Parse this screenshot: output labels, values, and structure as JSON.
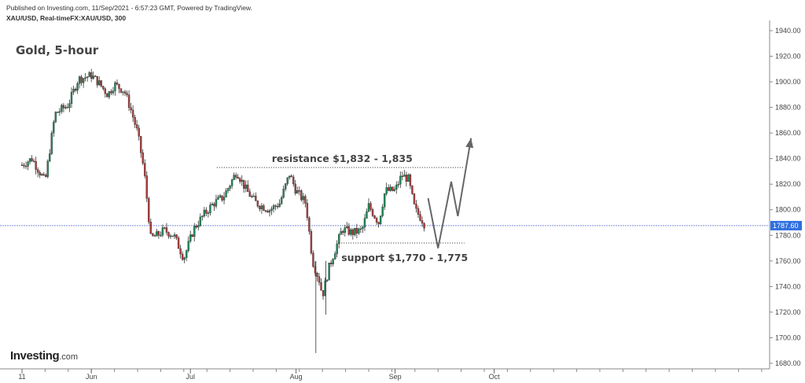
{
  "header": {
    "published": "Published on Investing.com, 11/Sep/2021 - 6:57:23 GMT, Powered by TradingView.",
    "symbol": "XAU/USD, Real-timeFX:XAU/USD, 300"
  },
  "logo": {
    "brand": "Investing",
    "suffix": ".com"
  },
  "chart_data": {
    "type": "candlestick",
    "title": "Gold, 5-hour",
    "y_axis": {
      "position": "right",
      "range": [
        1675,
        1945
      ],
      "ticks": [
        1680,
        1700,
        1720,
        1740,
        1760,
        1780,
        1800,
        1820,
        1840,
        1860,
        1880,
        1900,
        1920,
        1940
      ],
      "tick_labels": [
        "1680.00",
        "1700.00",
        "1720.00",
        "1740.00",
        "1760.00",
        "1780.00",
        "1800.00",
        "1820.00",
        "1840.00",
        "1860.00",
        "1880.00",
        "1900.00",
        "1920.00",
        "1940.00"
      ]
    },
    "x_axis": {
      "ticks": [
        "2021-05-11",
        "2021-06-01",
        "2021-07-01",
        "2021-08-02",
        "2021-09-01",
        "2021-10-01"
      ],
      "tick_labels": [
        "11",
        "Jun",
        "Jul",
        "Aug",
        "Sep",
        "Oct"
      ]
    },
    "grid": false,
    "last_price": 1787.6,
    "last_price_label": "1787.60",
    "annotations": {
      "resistance": {
        "label": "resistance $1,832 - 1,835",
        "value": 1833,
        "from": "2021-07-09",
        "to": "2021-09-22"
      },
      "support": {
        "label": "support $1,770 - 1,775",
        "value": 1774,
        "from": "2021-08-15",
        "to": "2021-09-22"
      }
    },
    "projection": [
      {
        "x": "2021-09-11",
        "y": 1809
      },
      {
        "x": "2021-09-14",
        "y": 1770
      },
      {
        "x": "2021-09-18",
        "y": 1822
      },
      {
        "x": "2021-09-20",
        "y": 1795
      },
      {
        "x": "2021-09-24",
        "y": 1856
      }
    ],
    "price_path": [
      {
        "x": "2021-05-11",
        "y": 1835
      },
      {
        "x": "2021-05-14",
        "y": 1840
      },
      {
        "x": "2021-05-18",
        "y": 1822
      },
      {
        "x": "2021-05-21",
        "y": 1875
      },
      {
        "x": "2021-05-25",
        "y": 1882
      },
      {
        "x": "2021-05-28",
        "y": 1902
      },
      {
        "x": "2021-06-01",
        "y": 1905
      },
      {
        "x": "2021-06-03",
        "y": 1900
      },
      {
        "x": "2021-06-06",
        "y": 1890
      },
      {
        "x": "2021-06-08",
        "y": 1898
      },
      {
        "x": "2021-06-11",
        "y": 1893
      },
      {
        "x": "2021-06-13",
        "y": 1878
      },
      {
        "x": "2021-06-15",
        "y": 1860
      },
      {
        "x": "2021-06-17",
        "y": 1830
      },
      {
        "x": "2021-06-19",
        "y": 1778
      },
      {
        "x": "2021-06-21",
        "y": 1780
      },
      {
        "x": "2021-06-23",
        "y": 1784
      },
      {
        "x": "2021-06-26",
        "y": 1780
      },
      {
        "x": "2021-06-29",
        "y": 1762
      },
      {
        "x": "2021-07-02",
        "y": 1785
      },
      {
        "x": "2021-07-05",
        "y": 1796
      },
      {
        "x": "2021-07-08",
        "y": 1805
      },
      {
        "x": "2021-07-11",
        "y": 1810
      },
      {
        "x": "2021-07-15",
        "y": 1830
      },
      {
        "x": "2021-07-18",
        "y": 1815
      },
      {
        "x": "2021-07-21",
        "y": 1805
      },
      {
        "x": "2021-07-25",
        "y": 1800
      },
      {
        "x": "2021-07-28",
        "y": 1805
      },
      {
        "x": "2021-07-31",
        "y": 1828
      },
      {
        "x": "2021-08-02",
        "y": 1815
      },
      {
        "x": "2021-08-05",
        "y": 1805
      },
      {
        "x": "2021-08-07",
        "y": 1760
      },
      {
        "x": "2021-08-09",
        "y": 1745
      },
      {
        "x": "2021-08-10",
        "y": 1733
      },
      {
        "x": "2021-08-12",
        "y": 1755
      },
      {
        "x": "2021-08-14",
        "y": 1770
      },
      {
        "x": "2021-08-16",
        "y": 1785
      },
      {
        "x": "2021-08-19",
        "y": 1782
      },
      {
        "x": "2021-08-22",
        "y": 1784
      },
      {
        "x": "2021-08-24",
        "y": 1803
      },
      {
        "x": "2021-08-27",
        "y": 1790
      },
      {
        "x": "2021-08-29",
        "y": 1815
      },
      {
        "x": "2021-09-01",
        "y": 1815
      },
      {
        "x": "2021-09-03",
        "y": 1827
      },
      {
        "x": "2021-09-05",
        "y": 1824
      },
      {
        "x": "2021-09-07",
        "y": 1800
      },
      {
        "x": "2021-09-09",
        "y": 1793
      },
      {
        "x": "2021-09-10",
        "y": 1788
      }
    ],
    "spikes": [
      {
        "x": "2021-08-08",
        "low": 1688
      },
      {
        "x": "2021-08-11",
        "low": 1718
      }
    ]
  }
}
